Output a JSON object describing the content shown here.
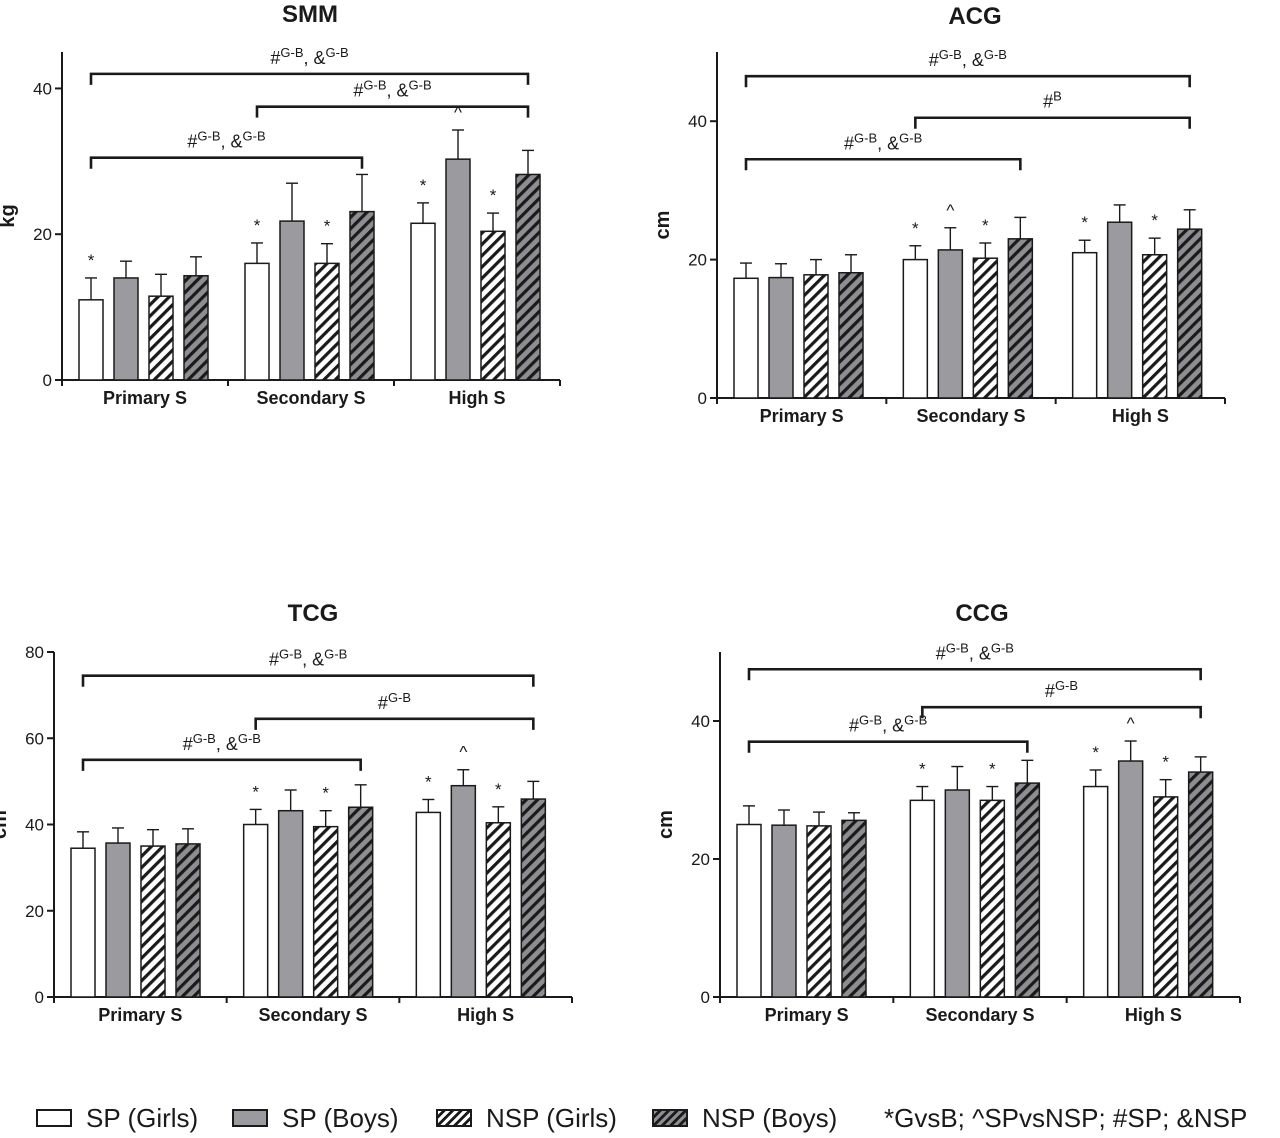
{
  "series_styles": [
    {
      "fill": "#ffffff",
      "pattern": "none"
    },
    {
      "fill": "#9b9b9f",
      "pattern": "none"
    },
    {
      "fill": "#ffffff",
      "pattern": "hatch-light"
    },
    {
      "fill": "#8e8e92",
      "pattern": "hatch-dark"
    }
  ],
  "legend": {
    "items": [
      "SP (Girls)",
      "SP (Boys)",
      "NSP (Girls)",
      "NSP (Boys)"
    ],
    "note": "*GvsB; ^SPvsNSP; #SP; &NSP"
  },
  "chart_data": [
    {
      "type": "bar",
      "title": "SMM",
      "ylabel": "kg",
      "ylim": [
        0,
        45
      ],
      "yticks": [
        0,
        20,
        40
      ],
      "categories": [
        "Primary S",
        "Secondary S",
        "High S"
      ],
      "series": [
        {
          "name": "SP (Girls)",
          "values": [
            11,
            16,
            21.5
          ],
          "errors": [
            3,
            2.8,
            2.8
          ]
        },
        {
          "name": "SP (Boys)",
          "values": [
            14,
            21.8,
            30.3
          ],
          "errors": [
            2.3,
            5.2,
            4
          ]
        },
        {
          "name": "NSP (Girls)",
          "values": [
            11.5,
            16,
            20.4
          ],
          "errors": [
            3,
            2.7,
            2.5
          ]
        },
        {
          "name": "NSP (Boys)",
          "values": [
            14.3,
            23.1,
            28.2
          ],
          "errors": [
            2.6,
            5.1,
            3.3
          ]
        }
      ],
      "annotations": [
        [
          "*",
          "",
          "",
          ""
        ],
        [
          "*",
          "",
          "*",
          ""
        ],
        [
          "*",
          "^",
          "*",
          ""
        ]
      ],
      "brackets": [
        {
          "label": "#",
          "sup": "G-B",
          "label2": ", &",
          "sup2": "G-B",
          "from": [
            0,
            0
          ],
          "to": [
            2,
            3
          ],
          "y": 42
        },
        {
          "label": "#",
          "sup": "G-B",
          "label2": ", &",
          "sup2": "G-B",
          "from": [
            1,
            0
          ],
          "to": [
            2,
            3
          ],
          "y": 37.5
        },
        {
          "label": "#",
          "sup": "G-B",
          "label2": ", &",
          "sup2": "G-B",
          "from": [
            0,
            0
          ],
          "to": [
            1,
            3
          ],
          "y": 30.5
        }
      ]
    },
    {
      "type": "bar",
      "title": "ACG",
      "ylabel": "cm",
      "ylim": [
        0,
        50
      ],
      "yticks": [
        0,
        20,
        40
      ],
      "categories": [
        "Primary S",
        "Secondary S",
        "High S"
      ],
      "series": [
        {
          "name": "SP (Girls)",
          "values": [
            17.3,
            20,
            21
          ],
          "errors": [
            2.2,
            2,
            1.8
          ]
        },
        {
          "name": "SP (Boys)",
          "values": [
            17.4,
            21.4,
            25.4
          ],
          "errors": [
            2,
            3.2,
            2.5
          ]
        },
        {
          "name": "NSP (Girls)",
          "values": [
            17.8,
            20.2,
            20.7
          ],
          "errors": [
            2.2,
            2.2,
            2.4
          ]
        },
        {
          "name": "NSP (Boys)",
          "values": [
            18.1,
            23,
            24.4
          ],
          "errors": [
            2.6,
            3.1,
            2.8
          ]
        }
      ],
      "annotations": [
        [
          "",
          "",
          "",
          ""
        ],
        [
          "*",
          "^",
          "*",
          ""
        ],
        [
          "*",
          "",
          "*",
          ""
        ]
      ],
      "brackets": [
        {
          "label": "#",
          "sup": "G-B",
          "label2": ", &",
          "sup2": "G-B",
          "from": [
            0,
            0
          ],
          "to": [
            2,
            3
          ],
          "y": 46.5
        },
        {
          "label": "#",
          "sup": "B",
          "label2": "",
          "sup2": "",
          "from": [
            1,
            0
          ],
          "to": [
            2,
            3
          ],
          "y": 40.5
        },
        {
          "label": "#",
          "sup": "G-B",
          "label2": ", &",
          "sup2": "G-B",
          "from": [
            0,
            0
          ],
          "to": [
            1,
            3
          ],
          "y": 34.5
        }
      ]
    },
    {
      "type": "bar",
      "title": "TCG",
      "ylabel": "cm",
      "ylim": [
        0,
        80
      ],
      "yticks": [
        0,
        20,
        40,
        60,
        80
      ],
      "categories": [
        "Primary S",
        "Secondary S",
        "High S"
      ],
      "series": [
        {
          "name": "SP (Girls)",
          "values": [
            34.5,
            40,
            42.8
          ],
          "errors": [
            3.8,
            3.5,
            3
          ]
        },
        {
          "name": "SP (Boys)",
          "values": [
            35.7,
            43.2,
            49
          ],
          "errors": [
            3.5,
            4.8,
            3.7
          ]
        },
        {
          "name": "NSP (Girls)",
          "values": [
            35,
            39.5,
            40.4
          ],
          "errors": [
            3.8,
            3.7,
            3.7
          ]
        },
        {
          "name": "NSP (Boys)",
          "values": [
            35.5,
            44,
            45.9
          ],
          "errors": [
            3.5,
            5.2,
            4.1
          ]
        }
      ],
      "annotations": [
        [
          "",
          "",
          "",
          ""
        ],
        [
          "*",
          "",
          "*",
          ""
        ],
        [
          "*",
          "^",
          "*",
          ""
        ]
      ],
      "brackets": [
        {
          "label": "#",
          "sup": "G-B",
          "label2": ", &",
          "sup2": "G-B",
          "from": [
            0,
            0
          ],
          "to": [
            2,
            3
          ],
          "y": 74.5
        },
        {
          "label": "#",
          "sup": "G-B",
          "label2": "",
          "sup2": "",
          "from": [
            1,
            0
          ],
          "to": [
            2,
            3
          ],
          "y": 64.5
        },
        {
          "label": "#",
          "sup": "G-B",
          "label2": ", &",
          "sup2": "G-B",
          "from": [
            0,
            0
          ],
          "to": [
            1,
            3
          ],
          "y": 55
        }
      ]
    },
    {
      "type": "bar",
      "title": "CCG",
      "ylabel": "cm",
      "ylim": [
        0,
        50
      ],
      "yticks": [
        0,
        20,
        40
      ],
      "categories": [
        "Primary S",
        "Secondary S",
        "High S"
      ],
      "series": [
        {
          "name": "SP (Girls)",
          "values": [
            25,
            28.5,
            30.5
          ],
          "errors": [
            2.7,
            2,
            2.4
          ]
        },
        {
          "name": "SP (Boys)",
          "values": [
            24.9,
            30,
            34.2
          ],
          "errors": [
            2.2,
            3.4,
            2.9
          ]
        },
        {
          "name": "NSP (Girls)",
          "values": [
            24.8,
            28.5,
            29
          ],
          "errors": [
            2,
            2,
            2.5
          ]
        },
        {
          "name": "NSP (Boys)",
          "values": [
            25.6,
            31,
            32.6
          ],
          "errors": [
            1.1,
            3.3,
            2.2
          ]
        }
      ],
      "annotations": [
        [
          "",
          "",
          "",
          ""
        ],
        [
          "*",
          "",
          "*",
          ""
        ],
        [
          "*",
          "^",
          "*",
          ""
        ]
      ],
      "brackets": [
        {
          "label": "#",
          "sup": "G-B",
          "label2": ", &",
          "sup2": "G-B",
          "from": [
            0,
            0
          ],
          "to": [
            2,
            3
          ],
          "y": 47.5
        },
        {
          "label": "#",
          "sup": "G-B",
          "label2": "",
          "sup2": "",
          "from": [
            1,
            0
          ],
          "to": [
            2,
            3
          ],
          "y": 42
        },
        {
          "label": "#",
          "sup": "G-B",
          "label2": ", &",
          "sup2": "G-B",
          "from": [
            0,
            0
          ],
          "to": [
            1,
            3
          ],
          "y": 37
        }
      ]
    }
  ]
}
